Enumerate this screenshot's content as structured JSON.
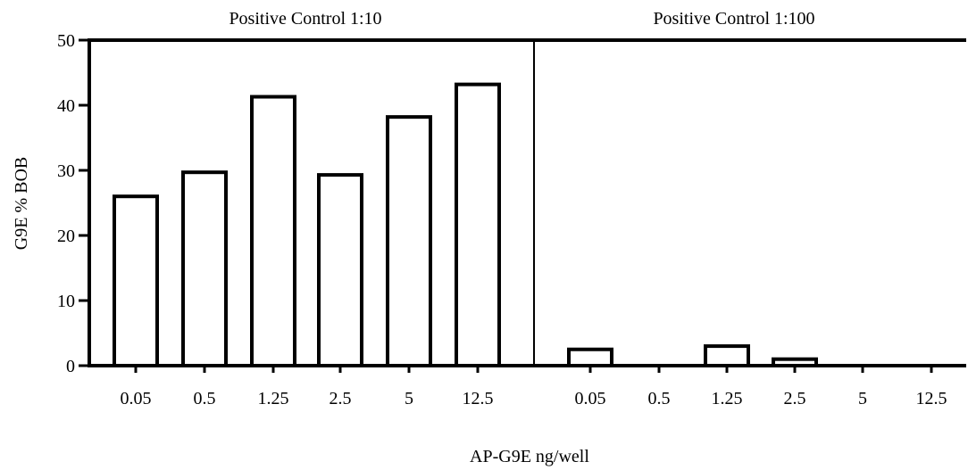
{
  "chart_data": {
    "type": "bar",
    "title": "",
    "xlabel": "AP-G9E ng/well",
    "ylabel": "G9E % BOB",
    "ylim": [
      0,
      50
    ],
    "yticks": [
      0,
      10,
      20,
      30,
      40,
      50
    ],
    "grid": false,
    "bar_fill": "#ffffff",
    "bar_stroke": "#000000",
    "panels": [
      {
        "title": "Positive Control 1:10",
        "categories": [
          "0.05",
          "0.5",
          "1.25",
          "2.5",
          "5",
          "12.5"
        ],
        "values": [
          26,
          29.7,
          41.3,
          29.3,
          38.2,
          43.2
        ]
      },
      {
        "title": "Positive Control 1:100",
        "categories": [
          "0.05",
          "0.5",
          "1.25",
          "2.5",
          "5",
          "12.5"
        ],
        "values": [
          2.5,
          0,
          3,
          1,
          0,
          0
        ]
      }
    ]
  }
}
